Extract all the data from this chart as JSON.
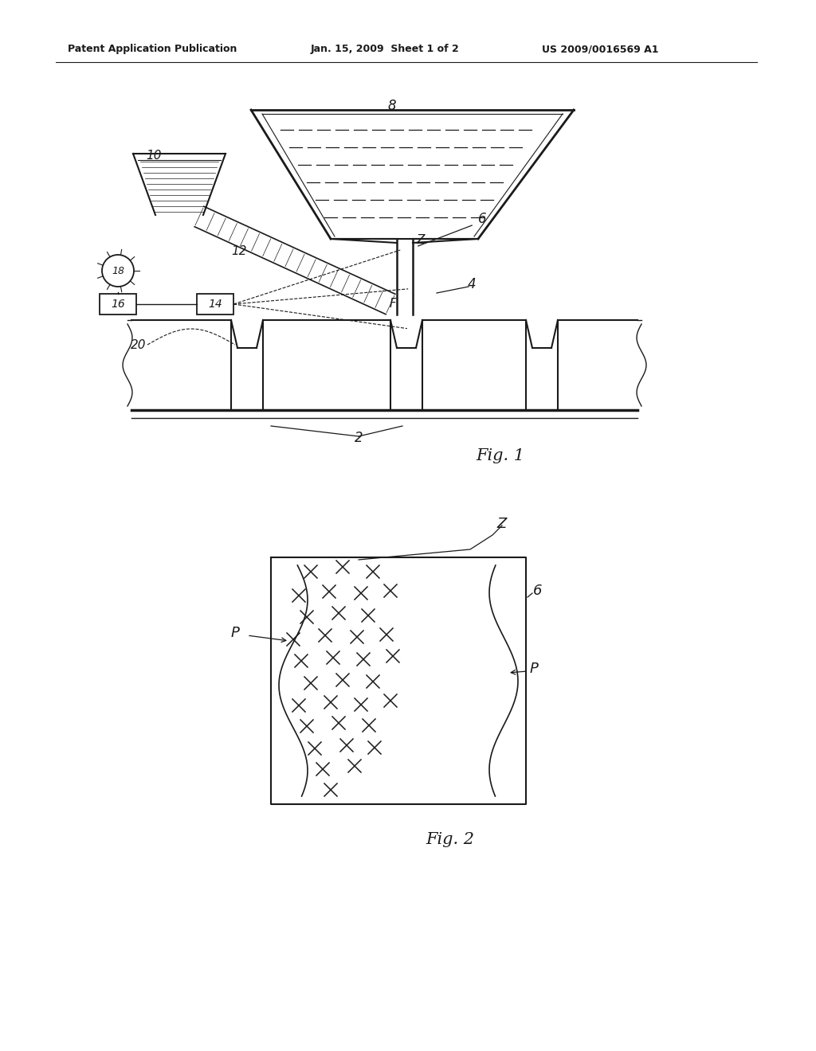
{
  "bg_color": "#ffffff",
  "line_color": "#1a1a1a",
  "header_left": "Patent Application Publication",
  "header_mid": "Jan. 15, 2009  Sheet 1 of 2",
  "header_right": "US 2009/0016569 A1",
  "fig1_label": "Fig. 1",
  "fig2_label": "Fig. 2"
}
